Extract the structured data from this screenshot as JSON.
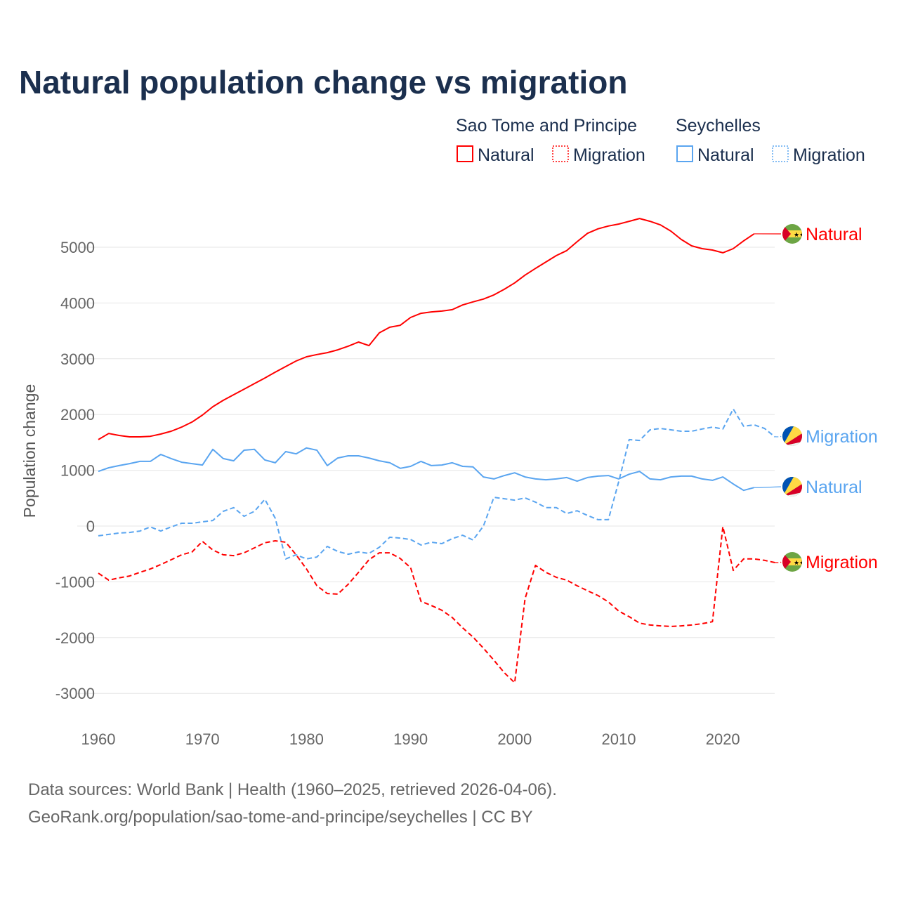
{
  "title": "Natural population change vs migration",
  "legend": {
    "groups": [
      {
        "name": "Sao Tome and Principe",
        "color": "#ff0000",
        "items": [
          "Natural",
          "Migration"
        ]
      },
      {
        "name": "Seychelles",
        "color": "#5aa5f0",
        "items": [
          "Natural",
          "Migration"
        ]
      }
    ]
  },
  "source": {
    "line1": "Data sources: World Bank | Health (1960–2025, retrieved 2026-04-06).",
    "line2": "GeoRank.org/population/sao-tome-and-principe/seychelles | CC BY"
  },
  "chart_data": {
    "type": "line",
    "title": "Natural population change vs migration",
    "xlabel": "",
    "ylabel": "Population change",
    "xlim": [
      1960,
      2025
    ],
    "ylim": [
      -3000,
      5500
    ],
    "xticks": [
      1960,
      1970,
      1980,
      1990,
      2000,
      2010,
      2020
    ],
    "yticks": [
      -3000,
      -2000,
      -1000,
      0,
      1000,
      2000,
      3000,
      4000,
      5000
    ],
    "grid": true,
    "legend_position": "top-right",
    "series": [
      {
        "name": "Sao Tome and Principe - Natural",
        "label": "Natural",
        "color": "#ff0000",
        "dashed": false,
        "flag": "sao-tome-and-principe",
        "x0": 1960,
        "values": [
          1550,
          1660,
          1625,
          1600,
          1600,
          1610,
          1650,
          1700,
          1775,
          1865,
          1990,
          2140,
          2255,
          2355,
          2455,
          2555,
          2655,
          2760,
          2860,
          2960,
          3035,
          3075,
          3110,
          3160,
          3225,
          3300,
          3235,
          3465,
          3565,
          3600,
          3740,
          3815,
          3840,
          3855,
          3880,
          3965,
          4020,
          4070,
          4145,
          4245,
          4360,
          4500,
          4620,
          4735,
          4850,
          4940,
          5100,
          5250,
          5330,
          5380,
          5415,
          5465,
          5515,
          5465,
          5400,
          5290,
          5140,
          5025,
          4975,
          4950,
          4900,
          4975,
          5115,
          5240
        ]
      },
      {
        "name": "Sao Tome and Principe - Migration",
        "label": "Migration",
        "color": "#ff0000",
        "dashed": true,
        "flag": "sao-tome-and-principe",
        "x0": 1960,
        "values": [
          -845,
          -970,
          -930,
          -895,
          -830,
          -770,
          -690,
          -605,
          -515,
          -465,
          -275,
          -430,
          -515,
          -530,
          -480,
          -390,
          -300,
          -265,
          -290,
          -515,
          -770,
          -1070,
          -1210,
          -1220,
          -1045,
          -830,
          -605,
          -480,
          -480,
          -580,
          -745,
          -1350,
          -1425,
          -1510,
          -1640,
          -1825,
          -1990,
          -2190,
          -2405,
          -2630,
          -2810,
          -1300,
          -705,
          -830,
          -920,
          -970,
          -1070,
          -1160,
          -1245,
          -1360,
          -1525,
          -1625,
          -1740,
          -1775,
          -1790,
          -1800,
          -1790,
          -1775,
          -1750,
          -1715,
          -10,
          -795,
          -590,
          -590,
          -615,
          -655
        ]
      },
      {
        "name": "Seychelles - Natural",
        "label": "Natural",
        "color": "#5aa5f0",
        "dashed": false,
        "flag": "seychelles",
        "x0": 1960,
        "values": [
          980,
          1045,
          1085,
          1120,
          1160,
          1160,
          1285,
          1210,
          1145,
          1120,
          1095,
          1375,
          1210,
          1170,
          1360,
          1375,
          1185,
          1135,
          1335,
          1295,
          1400,
          1360,
          1085,
          1220,
          1260,
          1260,
          1220,
          1170,
          1135,
          1035,
          1070,
          1160,
          1085,
          1095,
          1135,
          1070,
          1060,
          880,
          845,
          905,
          955,
          880,
          845,
          830,
          845,
          870,
          805,
          870,
          895,
          905,
          845,
          930,
          980,
          845,
          830,
          880,
          895,
          895,
          845,
          820,
          880,
          755,
          640,
          690
        ]
      },
      {
        "name": "Seychelles - Migration",
        "label": "Migration",
        "color": "#5aa5f0",
        "dashed": true,
        "flag": "seychelles",
        "x0": 1960,
        "values": [
          -175,
          -150,
          -125,
          -115,
          -90,
          -15,
          -90,
          -15,
          50,
          50,
          75,
          100,
          265,
          330,
          175,
          265,
          480,
          140,
          -590,
          -515,
          -590,
          -555,
          -365,
          -455,
          -505,
          -465,
          -490,
          -380,
          -200,
          -215,
          -240,
          -340,
          -290,
          -315,
          -225,
          -165,
          -250,
          0,
          515,
          490,
          465,
          505,
          430,
          330,
          330,
          225,
          275,
          190,
          115,
          115,
          800,
          1550,
          1535,
          1725,
          1750,
          1725,
          1700,
          1700,
          1740,
          1775,
          1740,
          2100,
          1790,
          1815,
          1750,
          1600
        ]
      }
    ]
  }
}
